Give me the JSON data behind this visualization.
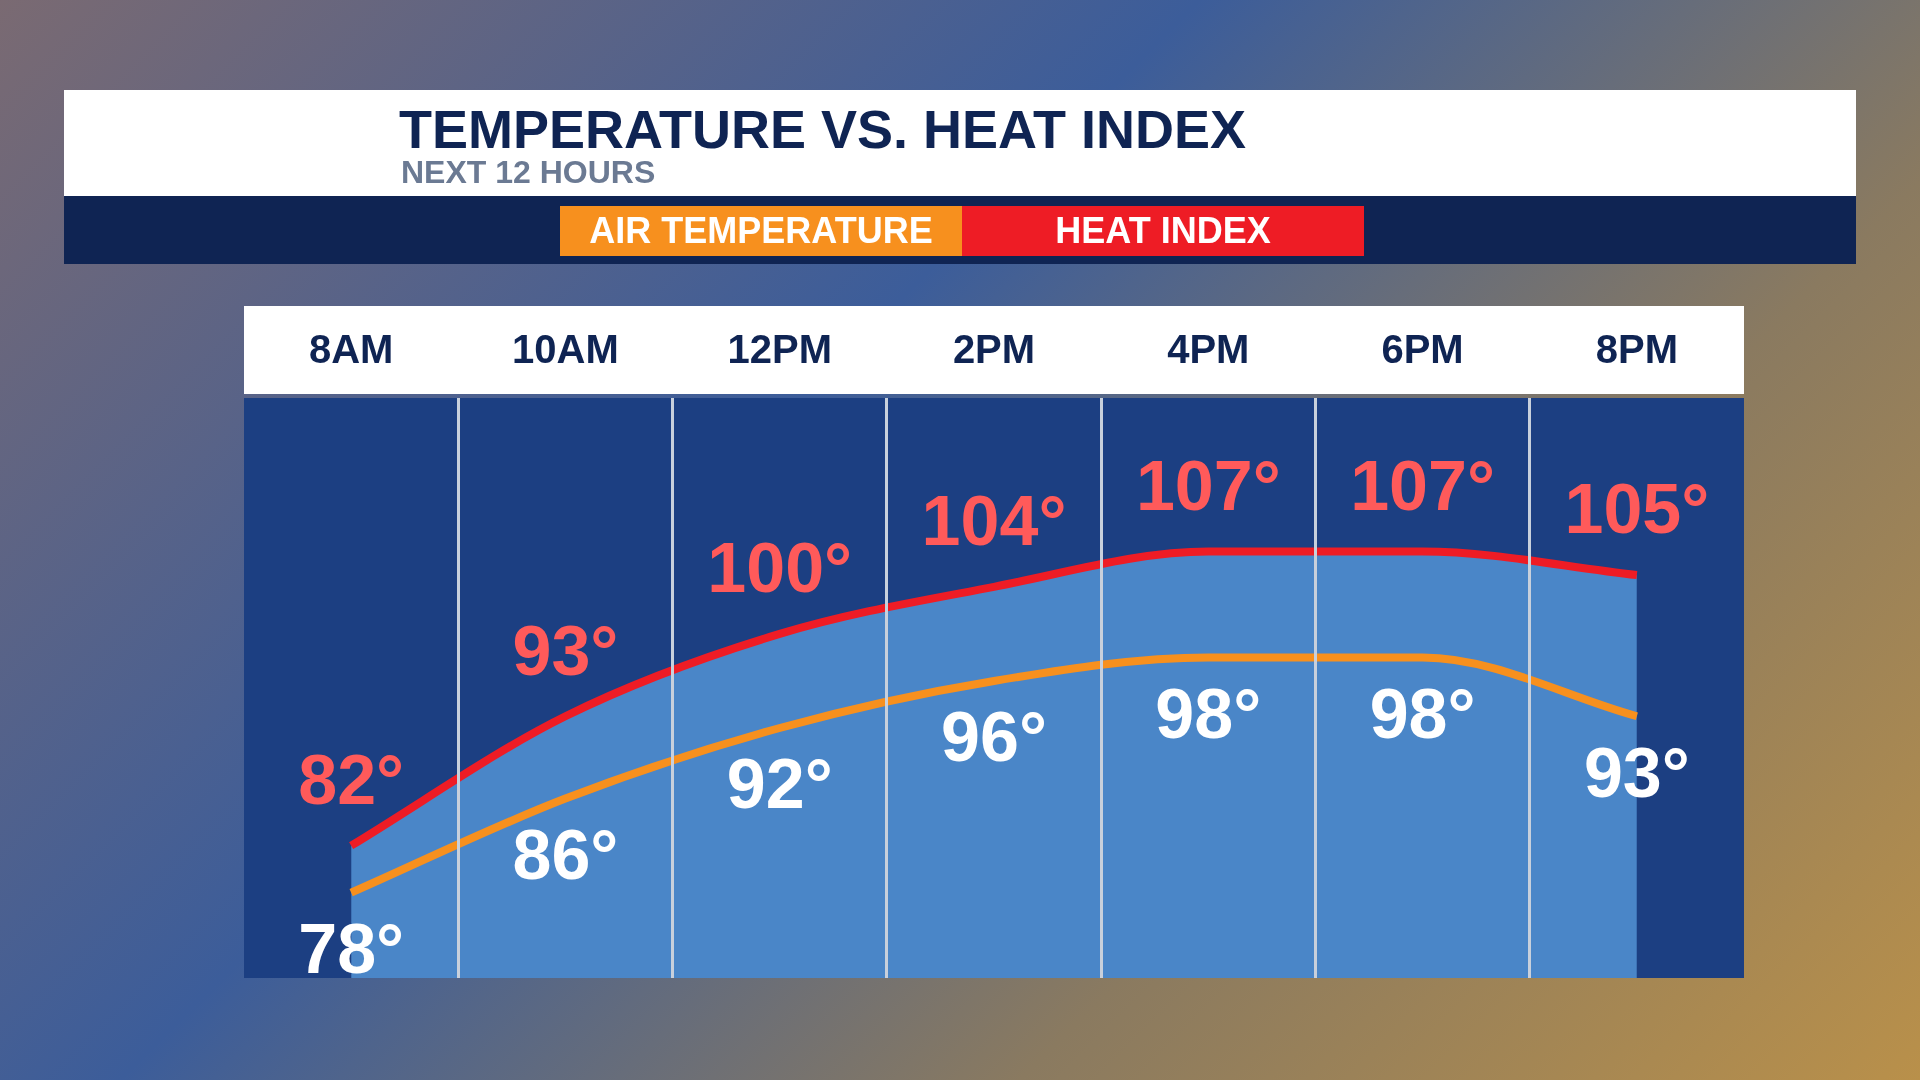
{
  "chart_data": {
    "type": "line",
    "title": "TEMPERATURE VS. HEAT INDEX",
    "subtitle": "NEXT 12 HOURS",
    "categories": [
      "8AM",
      "10AM",
      "12PM",
      "2PM",
      "4PM",
      "6PM",
      "8PM"
    ],
    "legend": "top",
    "marker": "none",
    "line_style": "solid",
    "series": [
      {
        "name": "AIR TEMPERATURE",
        "color": "#f7901e",
        "values": [
          78,
          86,
          92,
          96,
          98,
          98,
          93
        ],
        "value_labels": [
          "78°",
          "86°",
          "92°",
          "96°",
          "98°",
          "98°",
          "93°"
        ]
      },
      {
        "name": "HEAT INDEX",
        "type": "line",
        "color": "#ee1c25",
        "values": [
          82,
          93,
          100,
          104,
          107,
          107,
          105
        ],
        "value_labels": [
          "82°",
          "93°",
          "100°",
          "104°",
          "107°",
          "107°",
          "105°"
        ]
      }
    ]
  }
}
